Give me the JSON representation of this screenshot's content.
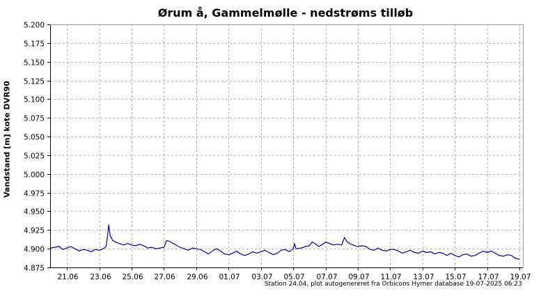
{
  "chart_data": {
    "type": "line",
    "title": "Ørum å, Gammelmølle - nedstrøms tilløb",
    "ylabel": "Vandstand [m] kote DVR90",
    "xlabel": "",
    "footer": "Station 24.04, plot autogenereret fra Orbicons Hymer database 19-07-2025 06:23",
    "ylim": [
      4.875,
      5.2
    ],
    "xlim": [
      "2025-06-19T23:00",
      "2025-07-19T05:00"
    ],
    "yticks": [
      "4.875",
      "4.900",
      "4.925",
      "4.950",
      "4.975",
      "5.000",
      "5.025",
      "5.050",
      "5.075",
      "5.100",
      "5.125",
      "5.150",
      "5.175",
      "5.200"
    ],
    "xticks": [
      {
        "date": "2025-06-21",
        "label": "21.06"
      },
      {
        "date": "2025-06-23",
        "label": "23.06"
      },
      {
        "date": "2025-06-25",
        "label": "25.06"
      },
      {
        "date": "2025-06-27",
        "label": "27.06"
      },
      {
        "date": "2025-06-29",
        "label": "29.06"
      },
      {
        "date": "2025-07-01",
        "label": "01.07"
      },
      {
        "date": "2025-07-03",
        "label": "03.07"
      },
      {
        "date": "2025-07-05",
        "label": "05.07"
      },
      {
        "date": "2025-07-07",
        "label": "07.07"
      },
      {
        "date": "2025-07-09",
        "label": "09.07"
      },
      {
        "date": "2025-07-11",
        "label": "11.07"
      },
      {
        "date": "2025-07-13",
        "label": "13.07"
      },
      {
        "date": "2025-07-15",
        "label": "15.07"
      },
      {
        "date": "2025-07-17",
        "label": "17.07"
      },
      {
        "date": "2025-07-19",
        "label": "19.07"
      }
    ],
    "grid": true,
    "series": [
      {
        "color": "#0000a0",
        "points": [
          [
            "2025-06-20T00:00",
            4.901
          ],
          [
            "2025-06-20T06:00",
            4.902
          ],
          [
            "2025-06-20T12:00",
            4.903
          ],
          [
            "2025-06-20T18:00",
            4.899
          ],
          [
            "2025-06-21T00:00",
            4.901
          ],
          [
            "2025-06-21T06:00",
            4.903
          ],
          [
            "2025-06-21T12:00",
            4.9
          ],
          [
            "2025-06-21T18:00",
            4.897
          ],
          [
            "2025-06-22T00:00",
            4.899
          ],
          [
            "2025-06-22T06:00",
            4.898
          ],
          [
            "2025-06-22T12:00",
            4.896
          ],
          [
            "2025-06-22T18:00",
            4.899
          ],
          [
            "2025-06-23T00:00",
            4.898
          ],
          [
            "2025-06-23T06:00",
            4.9
          ],
          [
            "2025-06-23T10:00",
            4.903
          ],
          [
            "2025-06-23T12:00",
            4.915
          ],
          [
            "2025-06-23T14:00",
            4.932
          ],
          [
            "2025-06-23T16:00",
            4.918
          ],
          [
            "2025-06-23T20:00",
            4.911
          ],
          [
            "2025-06-24T00:00",
            4.909
          ],
          [
            "2025-06-24T06:00",
            4.907
          ],
          [
            "2025-06-24T12:00",
            4.905
          ],
          [
            "2025-06-24T18:00",
            4.907
          ],
          [
            "2025-06-25T00:00",
            4.905
          ],
          [
            "2025-06-25T06:00",
            4.904
          ],
          [
            "2025-06-25T12:00",
            4.906
          ],
          [
            "2025-06-25T18:00",
            4.904
          ],
          [
            "2025-06-26T00:00",
            4.901
          ],
          [
            "2025-06-26T06:00",
            4.902
          ],
          [
            "2025-06-26T12:00",
            4.9
          ],
          [
            "2025-06-26T18:00",
            4.901
          ],
          [
            "2025-06-27T00:00",
            4.902
          ],
          [
            "2025-06-27T04:00",
            4.911
          ],
          [
            "2025-06-27T08:00",
            4.91
          ],
          [
            "2025-06-27T14:00",
            4.907
          ],
          [
            "2025-06-27T20:00",
            4.904
          ],
          [
            "2025-06-28T00:00",
            4.902
          ],
          [
            "2025-06-28T06:00",
            4.9
          ],
          [
            "2025-06-28T12:00",
            4.898
          ],
          [
            "2025-06-28T18:00",
            4.901
          ],
          [
            "2025-06-29T00:00",
            4.9
          ],
          [
            "2025-06-29T06:00",
            4.899
          ],
          [
            "2025-06-29T12:00",
            4.896
          ],
          [
            "2025-06-29T18:00",
            4.893
          ],
          [
            "2025-06-30T00:00",
            4.897
          ],
          [
            "2025-06-30T06:00",
            4.9
          ],
          [
            "2025-06-30T12:00",
            4.897
          ],
          [
            "2025-06-30T18:00",
            4.893
          ],
          [
            "2025-07-01T00:00",
            4.892
          ],
          [
            "2025-07-01T06:00",
            4.894
          ],
          [
            "2025-07-01T12:00",
            4.897
          ],
          [
            "2025-07-01T18:00",
            4.893
          ],
          [
            "2025-07-02T00:00",
            4.891
          ],
          [
            "2025-07-02T06:00",
            4.893
          ],
          [
            "2025-07-02T12:00",
            4.896
          ],
          [
            "2025-07-02T18:00",
            4.894
          ],
          [
            "2025-07-03T00:00",
            4.896
          ],
          [
            "2025-07-03T06:00",
            4.898
          ],
          [
            "2025-07-03T12:00",
            4.895
          ],
          [
            "2025-07-03T18:00",
            4.892
          ],
          [
            "2025-07-04T00:00",
            4.894
          ],
          [
            "2025-07-04T06:00",
            4.898
          ],
          [
            "2025-07-04T12:00",
            4.899
          ],
          [
            "2025-07-04T18:00",
            4.896
          ],
          [
            "2025-07-05T00:00",
            4.9
          ],
          [
            "2025-07-05T02:00",
            4.907
          ],
          [
            "2025-07-05T04:00",
            4.9
          ],
          [
            "2025-07-05T12:00",
            4.901
          ],
          [
            "2025-07-05T18:00",
            4.903
          ],
          [
            "2025-07-06T00:00",
            4.904
          ],
          [
            "2025-07-06T04:00",
            4.909
          ],
          [
            "2025-07-06T08:00",
            4.907
          ],
          [
            "2025-07-06T14:00",
            4.903
          ],
          [
            "2025-07-06T20:00",
            4.906
          ],
          [
            "2025-07-07T00:00",
            4.909
          ],
          [
            "2025-07-07T06:00",
            4.907
          ],
          [
            "2025-07-07T12:00",
            4.905
          ],
          [
            "2025-07-07T18:00",
            4.906
          ],
          [
            "2025-07-08T00:00",
            4.905
          ],
          [
            "2025-07-08T04:00",
            4.915
          ],
          [
            "2025-07-08T08:00",
            4.909
          ],
          [
            "2025-07-08T14:00",
            4.906
          ],
          [
            "2025-07-08T20:00",
            4.904
          ],
          [
            "2025-07-09T00:00",
            4.903
          ],
          [
            "2025-07-09T06:00",
            4.904
          ],
          [
            "2025-07-09T12:00",
            4.903
          ],
          [
            "2025-07-09T18:00",
            4.899
          ],
          [
            "2025-07-10T00:00",
            4.898
          ],
          [
            "2025-07-10T06:00",
            4.901
          ],
          [
            "2025-07-10T12:00",
            4.898
          ],
          [
            "2025-07-10T18:00",
            4.897
          ],
          [
            "2025-07-11T00:00",
            4.899
          ],
          [
            "2025-07-11T06:00",
            4.899
          ],
          [
            "2025-07-11T12:00",
            4.897
          ],
          [
            "2025-07-11T18:00",
            4.894
          ],
          [
            "2025-07-12T00:00",
            4.896
          ],
          [
            "2025-07-12T06:00",
            4.898
          ],
          [
            "2025-07-12T12:00",
            4.895
          ],
          [
            "2025-07-12T18:00",
            4.894
          ],
          [
            "2025-07-13T00:00",
            4.897
          ],
          [
            "2025-07-13T06:00",
            4.895
          ],
          [
            "2025-07-13T12:00",
            4.896
          ],
          [
            "2025-07-13T18:00",
            4.893
          ],
          [
            "2025-07-14T00:00",
            4.895
          ],
          [
            "2025-07-14T06:00",
            4.894
          ],
          [
            "2025-07-14T12:00",
            4.891
          ],
          [
            "2025-07-14T18:00",
            4.894
          ],
          [
            "2025-07-15T00:00",
            4.891
          ],
          [
            "2025-07-15T06:00",
            4.889
          ],
          [
            "2025-07-15T12:00",
            4.892
          ],
          [
            "2025-07-15T18:00",
            4.893
          ],
          [
            "2025-07-16T00:00",
            4.89
          ],
          [
            "2025-07-16T06:00",
            4.891
          ],
          [
            "2025-07-16T12:00",
            4.894
          ],
          [
            "2025-07-16T18:00",
            4.897
          ],
          [
            "2025-07-17T00:00",
            4.895
          ],
          [
            "2025-07-17T06:00",
            4.897
          ],
          [
            "2025-07-17T12:00",
            4.894
          ],
          [
            "2025-07-17T18:00",
            4.891
          ],
          [
            "2025-07-18T00:00",
            4.89
          ],
          [
            "2025-07-18T06:00",
            4.892
          ],
          [
            "2025-07-18T12:00",
            4.891
          ],
          [
            "2025-07-18T18:00",
            4.887
          ],
          [
            "2025-07-19T00:00",
            4.886
          ]
        ]
      }
    ]
  }
}
